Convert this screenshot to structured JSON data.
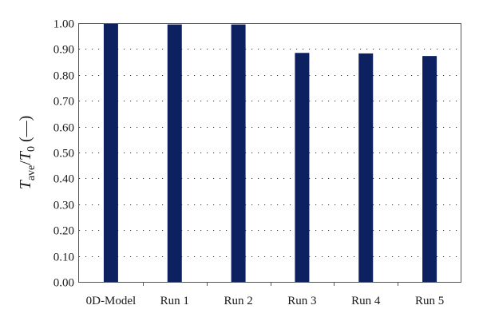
{
  "chart_data": {
    "type": "bar",
    "title": "",
    "xlabel": "",
    "ylabel": {
      "var": "T",
      "sub1": "ave",
      "slash": "/",
      "var2": "T",
      "sub2": "0",
      "unit": " (—)"
    },
    "categories": [
      "0D-Model",
      "Run 1",
      "Run 2",
      "Run 3",
      "Run 4",
      "Run 5"
    ],
    "values": [
      1.0,
      0.995,
      0.995,
      0.885,
      0.883,
      0.873
    ],
    "ylim": [
      0.0,
      1.0
    ],
    "yticks": [
      "0.00",
      "0.10",
      "0.20",
      "0.30",
      "0.40",
      "0.50",
      "0.60",
      "0.70",
      "0.80",
      "0.90",
      "1.00"
    ],
    "grid": "dotted horizontal",
    "legend": "none",
    "bar_color": "#0d2160"
  }
}
